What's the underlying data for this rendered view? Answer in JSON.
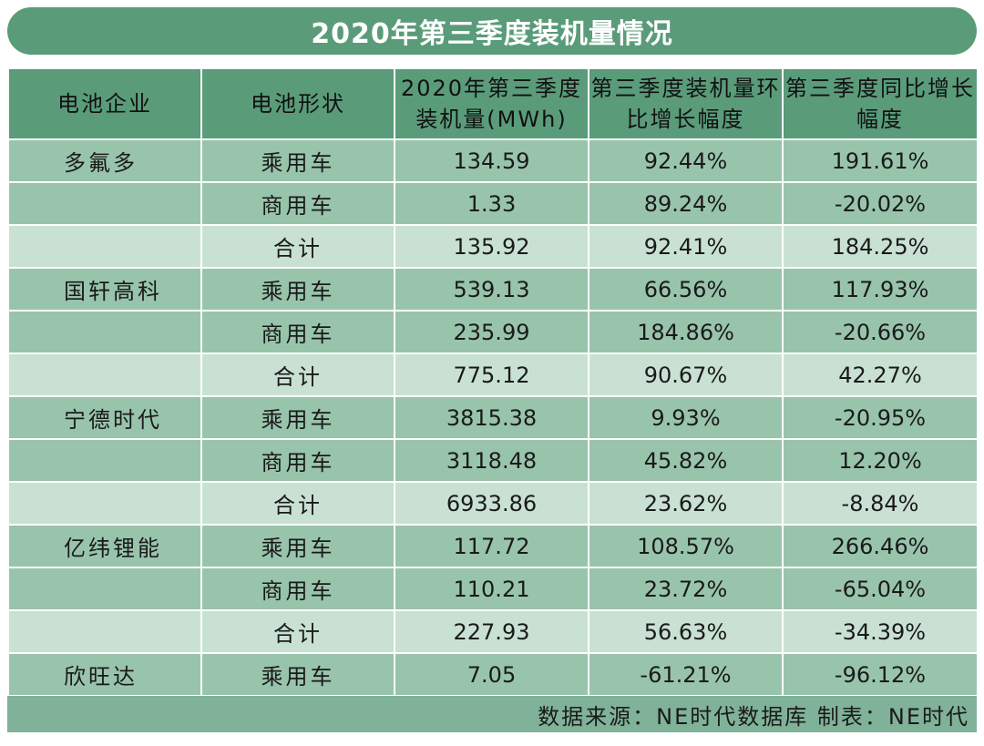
{
  "title": "2020年第三季度装机量情况",
  "headers": [
    "电池企业",
    "电池形状",
    "2020年第三季度装机量(MWh)",
    "第三季度装机量环比增长幅度",
    "第三季度同比增长幅度"
  ],
  "rows": [
    {
      "company": "多氟多",
      "shape": "乘用车",
      "volume": "134.59",
      "qoq": "92.44%",
      "yoy": "191.61%",
      "tone": "mid"
    },
    {
      "company": "",
      "shape": "商用车",
      "volume": "1.33",
      "qoq": "89.24%",
      "yoy": "-20.02%",
      "tone": "mid"
    },
    {
      "company": "",
      "shape": "合计",
      "volume": "135.92",
      "qoq": "92.41%",
      "yoy": "184.25%",
      "tone": "light"
    },
    {
      "company": "国轩高科",
      "shape": "乘用车",
      "volume": "539.13",
      "qoq": "66.56%",
      "yoy": "117.93%",
      "tone": "mid"
    },
    {
      "company": "",
      "shape": "商用车",
      "volume": "235.99",
      "qoq": "184.86%",
      "yoy": "-20.66%",
      "tone": "mid"
    },
    {
      "company": "",
      "shape": "合计",
      "volume": "775.12",
      "qoq": "90.67%",
      "yoy": "42.27%",
      "tone": "light"
    },
    {
      "company": "宁德时代",
      "shape": "乘用车",
      "volume": "3815.38",
      "qoq": "9.93%",
      "yoy": "-20.95%",
      "tone": "mid"
    },
    {
      "company": "",
      "shape": "商用车",
      "volume": "3118.48",
      "qoq": "45.82%",
      "yoy": "12.20%",
      "tone": "mid"
    },
    {
      "company": "",
      "shape": "合计",
      "volume": "6933.86",
      "qoq": "23.62%",
      "yoy": "-8.84%",
      "tone": "light"
    },
    {
      "company": "亿纬锂能",
      "shape": "乘用车",
      "volume": "117.72",
      "qoq": "108.57%",
      "yoy": "266.46%",
      "tone": "mid"
    },
    {
      "company": "",
      "shape": "商用车",
      "volume": "110.21",
      "qoq": "23.72%",
      "yoy": "-65.04%",
      "tone": "mid"
    },
    {
      "company": "",
      "shape": "合计",
      "volume": "227.93",
      "qoq": "56.63%",
      "yoy": "-34.39%",
      "tone": "light"
    },
    {
      "company": "欣旺达",
      "shape": "乘用车",
      "volume": "7.05",
      "qoq": "-61.21%",
      "yoy": "-96.12%",
      "tone": "mid"
    }
  ],
  "footer": "数据来源：NE时代数据库 制表：NE时代",
  "watermark": "NE时代",
  "colors": {
    "header": "#5a9b7a",
    "row_mid": "#98c4ac",
    "row_light": "#c9e1d3",
    "footer": "#7fb298"
  }
}
